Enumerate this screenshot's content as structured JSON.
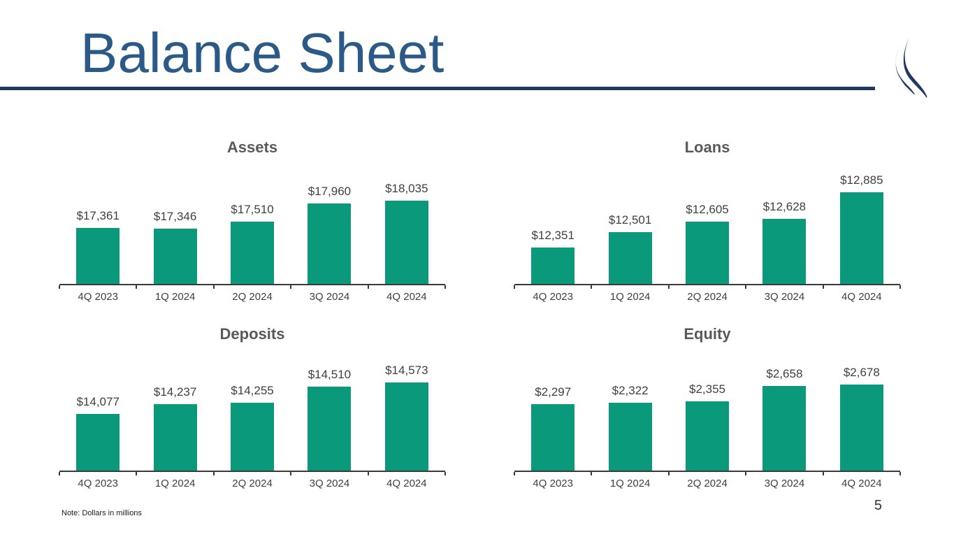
{
  "slide": {
    "title": "Balance Sheet",
    "note": "Note: Dollars in millions",
    "page_number": "5",
    "colors": {
      "title_blue": "#2B5A88",
      "rule_navy": "#1F3864",
      "bar_green": "#0A997A",
      "chart_title_gray": "#595959",
      "label_gray": "#404040"
    },
    "logo_icon": "double-swoosh-logo"
  },
  "chart_data": [
    {
      "type": "bar",
      "title": "Assets",
      "categories": [
        "4Q 2023",
        "1Q 2024",
        "2Q 2024",
        "3Q 2024",
        "4Q 2024"
      ],
      "values": [
        17361,
        17346,
        17510,
        17960,
        18035
      ],
      "labels": [
        "$17,361",
        "$17,346",
        "$17,510",
        "$17,960",
        "$18,035"
      ],
      "ylim": [
        16000,
        18900
      ],
      "grid": false,
      "legend": "none",
      "data_labels": "above-bars"
    },
    {
      "type": "bar",
      "title": "Loans",
      "categories": [
        "4Q 2023",
        "1Q 2024",
        "2Q 2024",
        "3Q 2024",
        "4Q 2024"
      ],
      "values": [
        12351,
        12501,
        12605,
        12628,
        12885
      ],
      "labels": [
        "$12,351",
        "$12,501",
        "$12,605",
        "$12,628",
        "$12,885"
      ],
      "ylim": [
        12000,
        13150
      ],
      "grid": false,
      "legend": "none",
      "data_labels": "above-bars"
    },
    {
      "type": "bar",
      "title": "Deposits",
      "categories": [
        "4Q 2023",
        "1Q 2024",
        "2Q 2024",
        "3Q 2024",
        "4Q 2024"
      ],
      "values": [
        14077,
        14237,
        14255,
        14510,
        14573
      ],
      "labels": [
        "$14,077",
        "$14,237",
        "$14,255",
        "$14,510",
        "$14,573"
      ],
      "ylim": [
        13200,
        15050
      ],
      "grid": false,
      "legend": "none",
      "data_labels": "above-bars"
    },
    {
      "type": "bar",
      "title": "Equity",
      "categories": [
        "4Q 2023",
        "1Q 2024",
        "2Q 2024",
        "3Q 2024",
        "4Q 2024"
      ],
      "values": [
        2297,
        2322,
        2355,
        2658,
        2678
      ],
      "labels": [
        "$2,297",
        "$2,322",
        "$2,355",
        "$2,658",
        "$2,678"
      ],
      "ylim": [
        1000,
        3320
      ],
      "grid": false,
      "legend": "none",
      "data_labels": "above-bars"
    }
  ]
}
